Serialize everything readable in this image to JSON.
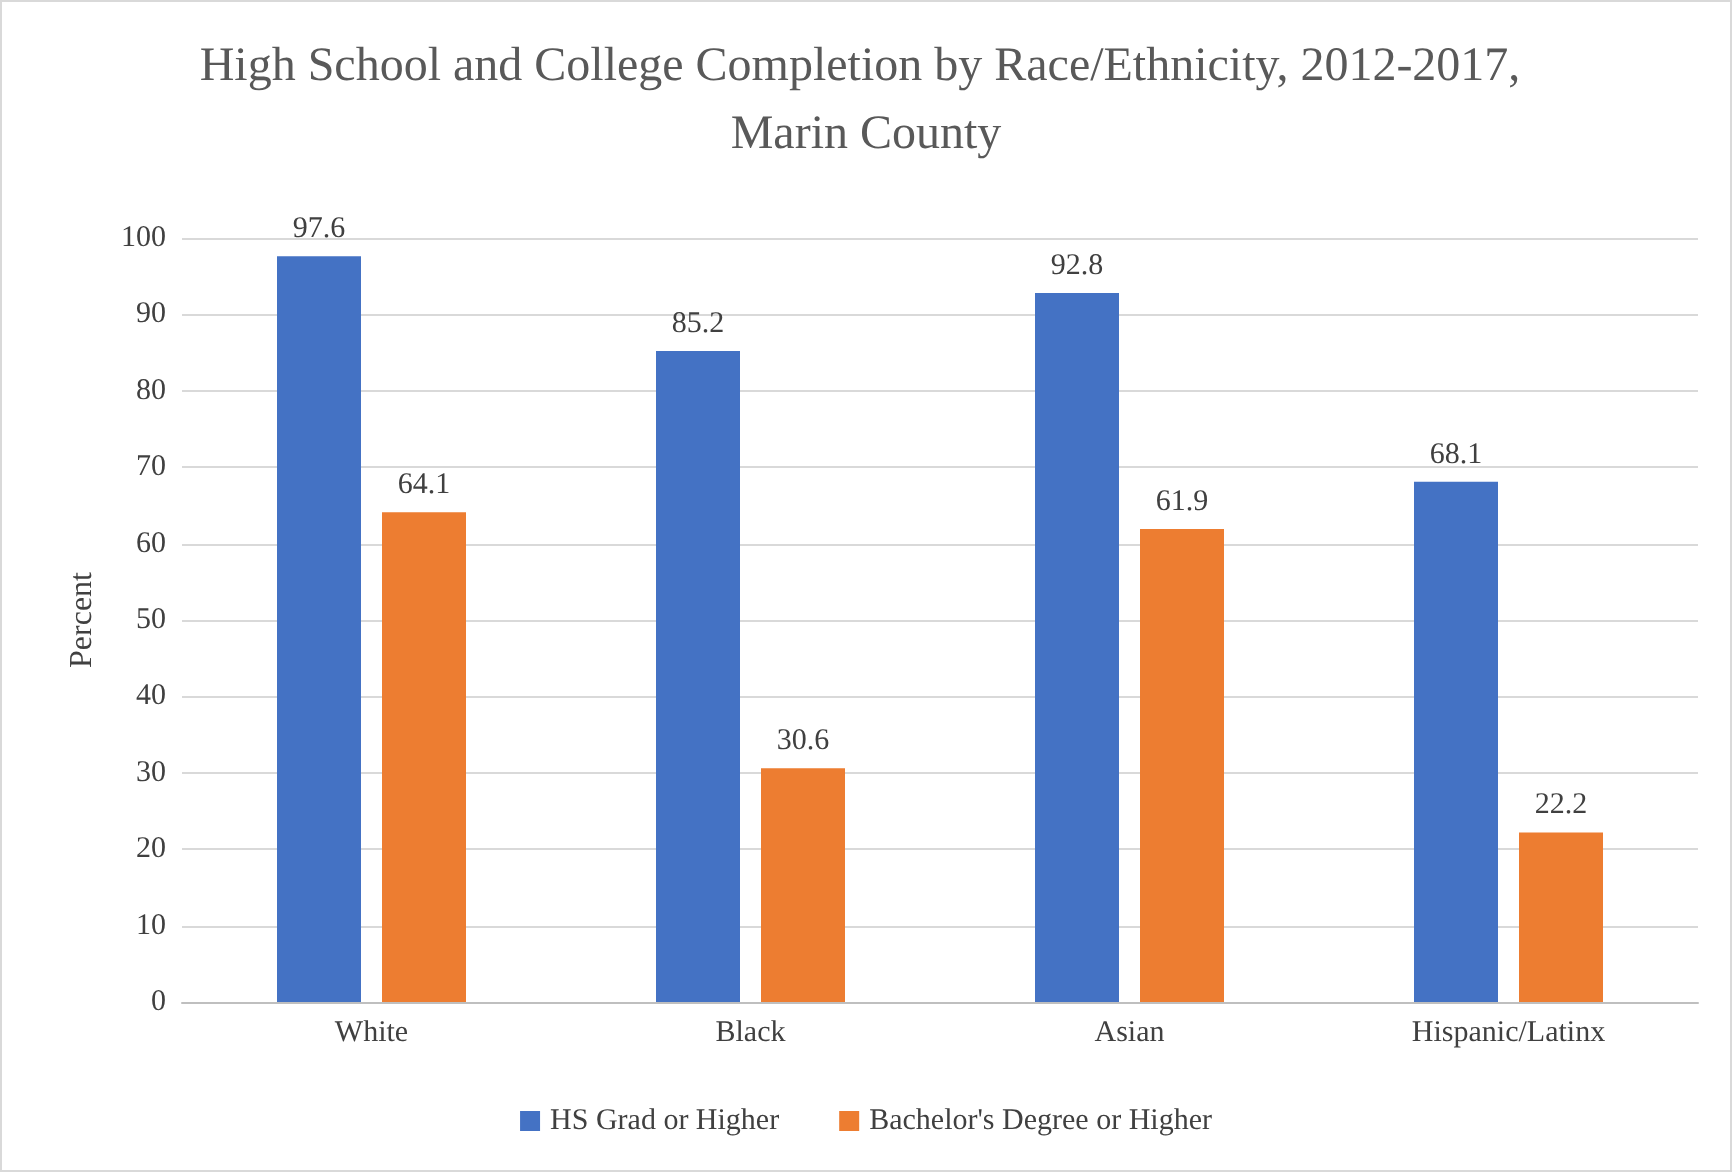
{
  "chart_data": {
    "type": "bar",
    "title": "High School and College Completion by Race/Ethnicity, 2012-2017, Marin County",
    "ylabel": "Percent",
    "categories": [
      "White",
      "Black",
      "Asian",
      "Hispanic/Latinx"
    ],
    "series": [
      {
        "name": "HS Grad or Higher",
        "color": "#4472c4",
        "values": [
          97.6,
          85.2,
          92.8,
          68.1
        ]
      },
      {
        "name": "Bachelor's Degree or Higher",
        "color": "#ed7d31",
        "values": [
          64.1,
          30.6,
          61.9,
          22.2
        ]
      }
    ],
    "ylim": [
      0,
      100
    ],
    "yticks": [
      0,
      10,
      20,
      30,
      40,
      50,
      60,
      70,
      80,
      90,
      100
    ],
    "grid": "y",
    "legend": "bottom",
    "data_labels": true
  }
}
